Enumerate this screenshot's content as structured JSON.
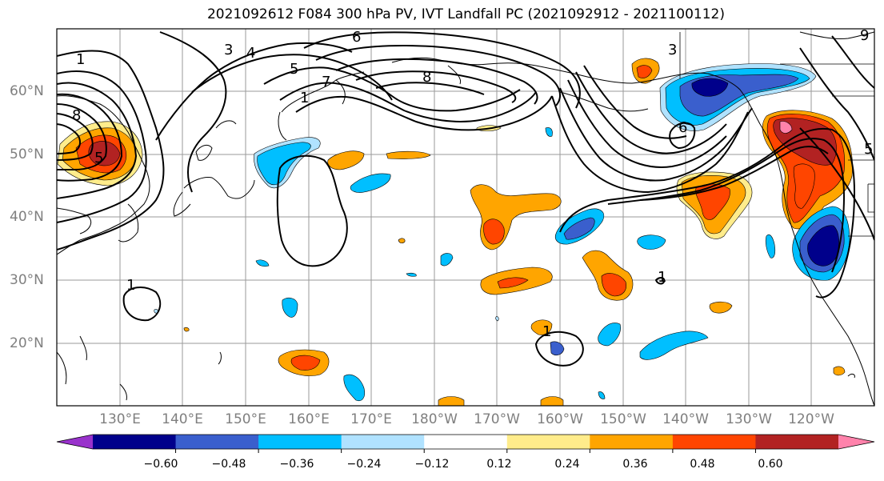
{
  "title": "2021092612 F084 300 hPa PV, IVT Landfall PC (2021092912 - 2021100112)",
  "lat_labels": [
    "60°N",
    "50°N",
    "40°N",
    "30°N",
    "20°N"
  ],
  "lon_labels": [
    "130°E",
    "140°E",
    "150°E",
    "160°E",
    "170°E",
    "180°W",
    "170°W",
    "160°W",
    "150°W",
    "140°W",
    "130°W",
    "120°W"
  ],
  "colorbar": {
    "ticks": [
      "−0.60",
      "−0.48",
      "−0.36",
      "−0.24",
      "−0.12",
      "0.12",
      "0.24",
      "0.36",
      "0.48",
      "0.60"
    ],
    "colors": [
      "#9932cc",
      "#00008b",
      "#3a5fcd",
      "#00bfff",
      "#b0e2ff",
      "#ffffff",
      "#ffec8b",
      "#ffa500",
      "#ff4500",
      "#b22222",
      "#ff82ab"
    ]
  },
  "contour_labels": [
    "1",
    "3",
    "4",
    "5",
    "6",
    "7",
    "8",
    "9",
    "8",
    "3",
    "6",
    "5",
    "1",
    "1",
    "1",
    "1",
    "5"
  ],
  "map_extent": {
    "lon_min": 120,
    "lon_max": 250,
    "lat_min": 10,
    "lat_max": 70
  }
}
